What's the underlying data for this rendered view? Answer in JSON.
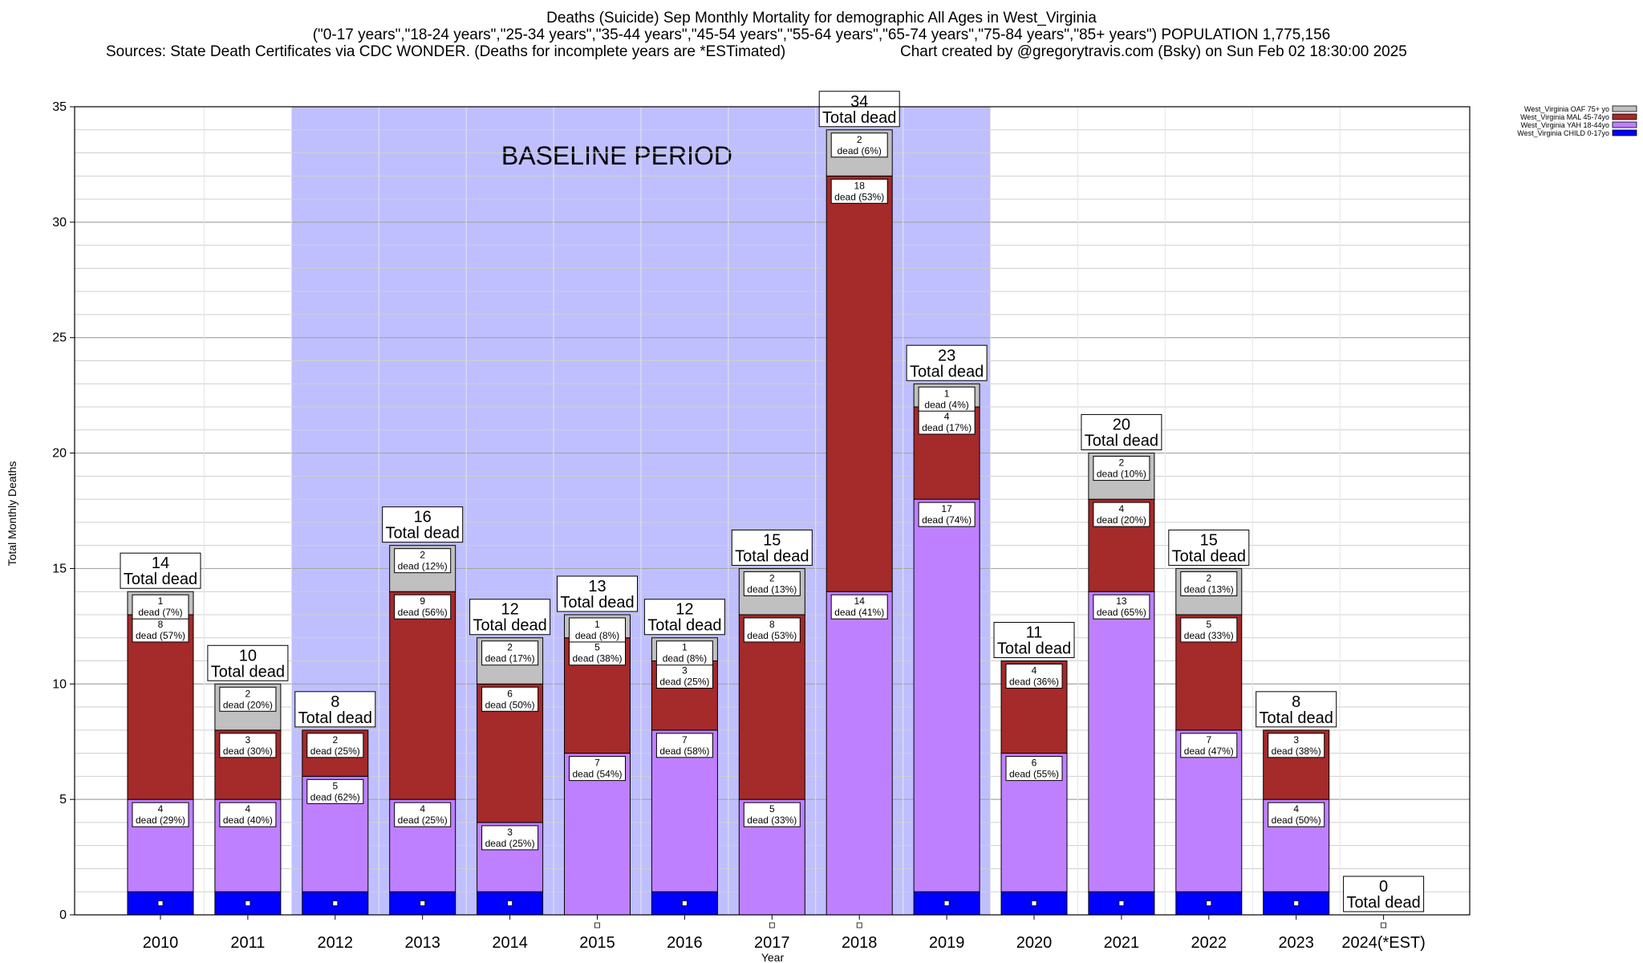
{
  "title": {
    "line1": "Deaths (Suicide) Sep Monthly Mortality for demographic All Ages in West_Virginia",
    "line2": "(\"0-17 years\",\"18-24 years\",\"25-34 years\",\"35-44 years\",\"45-54 years\",\"55-64 years\",\"65-74 years\",\"75-84 years\",\"85+ years\") POPULATION 1,775,156",
    "sources": "Sources: State Death Certificates via CDC WONDER. (Deaths for incomplete years are *ESTimated)",
    "credit": "Chart created by @gregorytravis.com (Bsky) on Sun Feb 02 18:30:00 2025"
  },
  "chart_data": {
    "type": "bar",
    "stacked": true,
    "xlabel": "Year",
    "ylabel": "Total Monthly Deaths",
    "ylim": [
      0,
      35
    ],
    "yticks": [
      "0",
      "5",
      "10",
      "15",
      "20",
      "25",
      "30",
      "35"
    ],
    "categories": [
      "2010",
      "2011",
      "2012",
      "2013",
      "2014",
      "2015",
      "2016",
      "2017",
      "2018",
      "2019",
      "2020",
      "2021",
      "2022",
      "2023",
      "2024(*EST)"
    ],
    "series": [
      {
        "name": "West_Virginia CHILD 0-17yo",
        "color": "#0000ff",
        "values": [
          1,
          1,
          1,
          1,
          1,
          0,
          1,
          0,
          0,
          1,
          1,
          1,
          1,
          1,
          0
        ]
      },
      {
        "name": "West_Virginia YAH 18-44yo",
        "color": "#bf80ff",
        "values": [
          4,
          4,
          5,
          4,
          3,
          7,
          7,
          5,
          14,
          17,
          6,
          13,
          7,
          4,
          0
        ]
      },
      {
        "name": "West_Virginia MAL 45-74yo",
        "color": "#a52a2a",
        "values": [
          8,
          3,
          2,
          9,
          6,
          5,
          3,
          8,
          18,
          4,
          4,
          4,
          5,
          3,
          0
        ]
      },
      {
        "name": "West_Virginia OAF 75+ yo",
        "color": "#c0c0c0",
        "values": [
          1,
          2,
          0,
          2,
          2,
          1,
          1,
          2,
          2,
          1,
          0,
          2,
          2,
          0,
          0
        ]
      }
    ],
    "segment_labels": {
      "West_Virginia YAH 18-44yo": [
        "dead (29%)",
        "dead (40%)",
        "dead (62%)",
        "dead (25%)",
        "dead (25%)",
        "dead (54%)",
        "dead (58%)",
        "dead (33%)",
        "dead (41%)",
        "dead (74%)",
        "dead (55%)",
        "dead (65%)",
        "dead (47%)",
        "dead (50%)",
        ""
      ],
      "West_Virginia MAL 45-74yo": [
        "dead (57%)",
        "dead (30%)",
        "dead (25%)",
        "dead (56%)",
        "dead (50%)",
        "dead (38%)",
        "dead (25%)",
        "dead (53%)",
        "dead (53%)",
        "dead (17%)",
        "dead (36%)",
        "dead (20%)",
        "dead (33%)",
        "dead (38%)",
        ""
      ],
      "West_Virginia OAF 75+ yo": [
        "dead (7%)",
        "dead (20%)",
        "",
        "dead (12%)",
        "dead (17%)",
        "dead (8%)",
        "dead (8%)",
        "dead (13%)",
        "dead (6%)",
        "dead (4%)",
        "",
        "dead (10%)",
        "dead (13%)",
        "",
        ""
      ]
    },
    "totals": [
      14,
      10,
      8,
      16,
      12,
      13,
      12,
      15,
      34,
      23,
      11,
      20,
      15,
      8,
      0
    ],
    "total_suffix": "Total dead",
    "annotation": {
      "text": "BASELINE PERIOD",
      "from": "2012",
      "to": "2019",
      "color": "#bfbfff"
    },
    "legend": {
      "placement": "top-right"
    },
    "grid": true
  }
}
